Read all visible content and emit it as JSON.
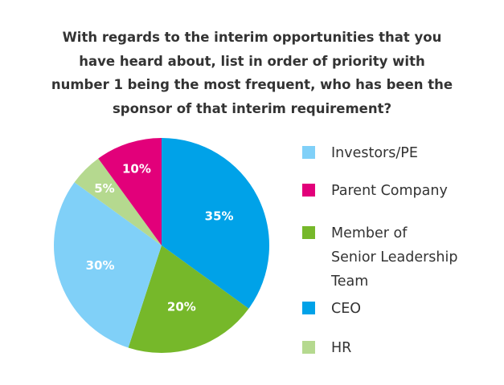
{
  "chart_data": {
    "type": "pie",
    "title_lines": [
      "With regards to the interim opportunities that you",
      "have heard about, list in order of priority with",
      "number 1 being the most frequent, who has been the",
      "sponsor of that interim requirement?"
    ],
    "slices": [
      {
        "name": "CEO",
        "value": 35,
        "label": "35%",
        "color": "#00a2e8"
      },
      {
        "name": "Member of Senior Leadership Team",
        "value": 20,
        "label": "20%",
        "color": "#76b82a"
      },
      {
        "name": "Investors/PE",
        "value": 30,
        "label": "30%",
        "color": "#80d0f8"
      },
      {
        "name": "HR",
        "value": 5,
        "label": "5%",
        "color": "#b5d98f"
      },
      {
        "name": "Parent Company",
        "value": 10,
        "label": "10%",
        "color": "#e2007a"
      }
    ],
    "legend": [
      {
        "lines": [
          "Investors/PE"
        ],
        "color": "#80d0f8"
      },
      {
        "lines": [
          "Parent Company"
        ],
        "color": "#e2007a"
      },
      {
        "lines": [
          "Member of",
          "Senior Leadership",
          "Team"
        ],
        "color": "#76b82a"
      },
      {
        "lines": [
          "CEO"
        ],
        "color": "#00a2e8"
      },
      {
        "lines": [
          "HR"
        ],
        "color": "#b5d98f"
      }
    ],
    "legend_position": "right"
  }
}
